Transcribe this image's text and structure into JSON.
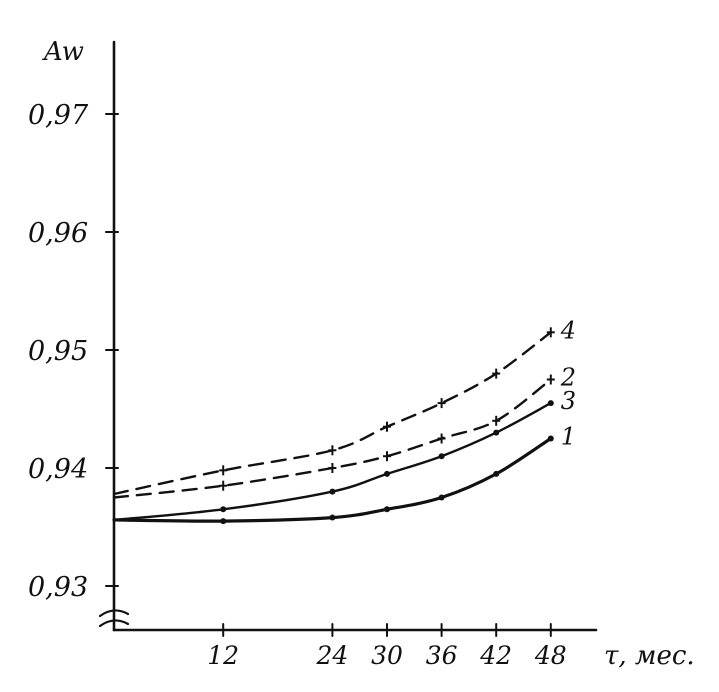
{
  "chart_data": {
    "type": "line",
    "ylabel": "Aw",
    "xlabel": "τ, мес.",
    "y_tick_labels": [
      "0,93",
      "0,94",
      "0,95",
      "0,96",
      "0,97"
    ],
    "y_ticks": [
      0.93,
      0.94,
      0.95,
      0.96,
      0.97
    ],
    "x_tick_labels": [
      "12",
      "24",
      "30",
      "36",
      "42",
      "48"
    ],
    "x_ticks": [
      12,
      24,
      30,
      36,
      42,
      48
    ],
    "ylim": [
      0.93,
      0.97
    ],
    "xlim": [
      0,
      48
    ],
    "axis_break": "y",
    "grid": false,
    "legend": "curve numbers at right end of lines",
    "series": [
      {
        "name": "1",
        "style": "solid",
        "marker": "dot",
        "x": [
          0,
          12,
          24,
          30,
          36,
          42,
          48
        ],
        "y": [
          0.9356,
          0.9355,
          0.9358,
          0.9365,
          0.9375,
          0.9395,
          0.9425
        ]
      },
      {
        "name": "2",
        "style": "dashed",
        "marker": "cross",
        "x": [
          0,
          12,
          24,
          30,
          36,
          42,
          48
        ],
        "y": [
          0.9375,
          0.9385,
          0.94,
          0.941,
          0.9425,
          0.944,
          0.9475
        ]
      },
      {
        "name": "3",
        "style": "solid",
        "marker": "dot",
        "x": [
          0,
          12,
          24,
          30,
          36,
          42,
          48
        ],
        "y": [
          0.9356,
          0.9365,
          0.938,
          0.9395,
          0.941,
          0.943,
          0.9455
        ]
      },
      {
        "name": "4",
        "style": "dashed",
        "marker": "cross",
        "x": [
          0,
          12,
          24,
          30,
          36,
          42,
          48
        ],
        "y": [
          0.9378,
          0.9398,
          0.9415,
          0.9435,
          0.9455,
          0.948,
          0.9515
        ]
      }
    ]
  }
}
